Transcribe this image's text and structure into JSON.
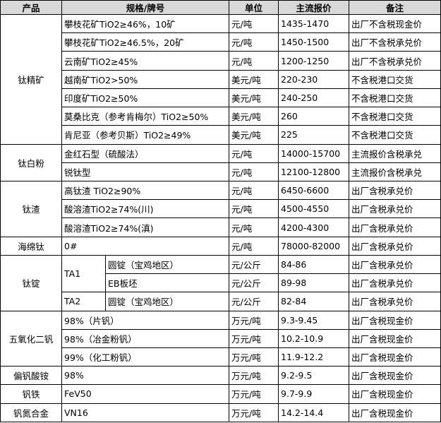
{
  "header": [
    "产品",
    "规格/牌号",
    "单位",
    "主流报价",
    "备注"
  ],
  "groups": [
    {
      "product": "钛精矿",
      "rows": [
        {
          "spec": "攀枝花矿TiO2≥46%，10矿",
          "unit": "元/吨",
          "price": "1435-1470",
          "note": "出厂不含税现金价"
        },
        {
          "spec": "攀枝花矿TiO2≥46.5%，20矿",
          "unit": "元/吨",
          "price": "1450-1500",
          "note": "出厂不含税承兑价"
        },
        {
          "spec": "云南矿TiO2≥45%",
          "unit": "元/吨",
          "price": "1200-1250",
          "note": "出厂不含税承兑价"
        },
        {
          "spec": "越南矿TiO2>50%",
          "unit": "美元/吨",
          "price": "220-230",
          "note": "不含税港口交货"
        },
        {
          "spec": "印度矿TiO2≥50%",
          "unit": "美元/吨",
          "price": "240-250",
          "note": "不含税港口交货"
        },
        {
          "spec": "莫桑比克（参考肯梅尔）TiO2≥50%",
          "unit": "美元/吨",
          "price": "260",
          "note": "不含税港口交货"
        },
        {
          "spec": "肯尼亚（参考贝斯）TiO2≥49%",
          "unit": "美元/吨",
          "price": "225",
          "note": "不含税港口交货"
        }
      ]
    },
    {
      "product": "钛白粉",
      "rows": [
        {
          "spec": "金红石型（硫酸法）",
          "unit": "元/吨",
          "price": "14000-15700",
          "note": "主流报价含税承兑"
        },
        {
          "spec": "锐钛型",
          "unit": "元/吨",
          "price": "12100-12800",
          "note": "主流报价含税承兑"
        }
      ]
    },
    {
      "product": "钛渣",
      "rows": [
        {
          "spec": "高钛渣 TiO2≥90%",
          "unit": "元/吨",
          "price": "6450-6600",
          "note": "出厂含税承兑价"
        },
        {
          "spec": "酸溶渣TiO2≥74%(川)",
          "unit": "元/吨",
          "price": "4500-4550",
          "note": "出厂含税承兑价"
        },
        {
          "spec": "酸溶渣TiO2≥74%(滇)",
          "unit": "元/吨",
          "price": "4200-4300",
          "note": "出厂含税承兑价"
        }
      ]
    },
    {
      "product": "海绵钛",
      "rows": [
        {
          "spec": "0#",
          "unit": "元/吨",
          "price": "78000-82000",
          "note": "出厂含税承兑价"
        }
      ]
    },
    {
      "product": "钛锭",
      "rows": [
        {
          "grade": "TA1",
          "spec": "圆锭（宝鸡地区）",
          "unit": "元/公斤",
          "price": "84-86",
          "note": "出厂含税承兑价"
        },
        {
          "spec": "EB板坯",
          "unit": "元/公斤",
          "price": "89-98",
          "note": "出厂含税承兑价"
        },
        {
          "grade": "TA2",
          "spec": "圆锭（宝鸡地区）",
          "unit": "元/公斤",
          "price": "82-84",
          "note": "出厂含税承兑价"
        }
      ]
    },
    {
      "product": "五氧化二钒",
      "rows": [
        {
          "spec": "98%（片钒）",
          "unit": "万元/吨",
          "price": "9.3-9.45",
          "note": "出厂含税现金价"
        },
        {
          "spec": "98%（冶金粉钒）",
          "unit": "万元/吨",
          "price": "10.2-10.9",
          "note": "出厂含税现金价"
        },
        {
          "spec": "99%（化工粉钒）",
          "unit": "万元/吨",
          "price": "11.9-12.2",
          "note": "出厂含税现金价"
        }
      ]
    },
    {
      "product": "偏钒酸铵",
      "rows": [
        {
          "spec": "98%",
          "unit": "万元/吨",
          "price": "9.2-9.5",
          "note": "出厂含税现金价"
        }
      ]
    },
    {
      "product": "钒铁",
      "rows": [
        {
          "spec": "FeV50",
          "unit": "万元/吨",
          "price": "9.7-9.9",
          "note": "出厂含税现金价"
        }
      ]
    },
    {
      "product": "钒氮合金",
      "rows": [
        {
          "spec": "VN16",
          "unit": "万元/吨",
          "price": "14.2-14.4",
          "note": "出厂含税现金价"
        }
      ]
    }
  ]
}
